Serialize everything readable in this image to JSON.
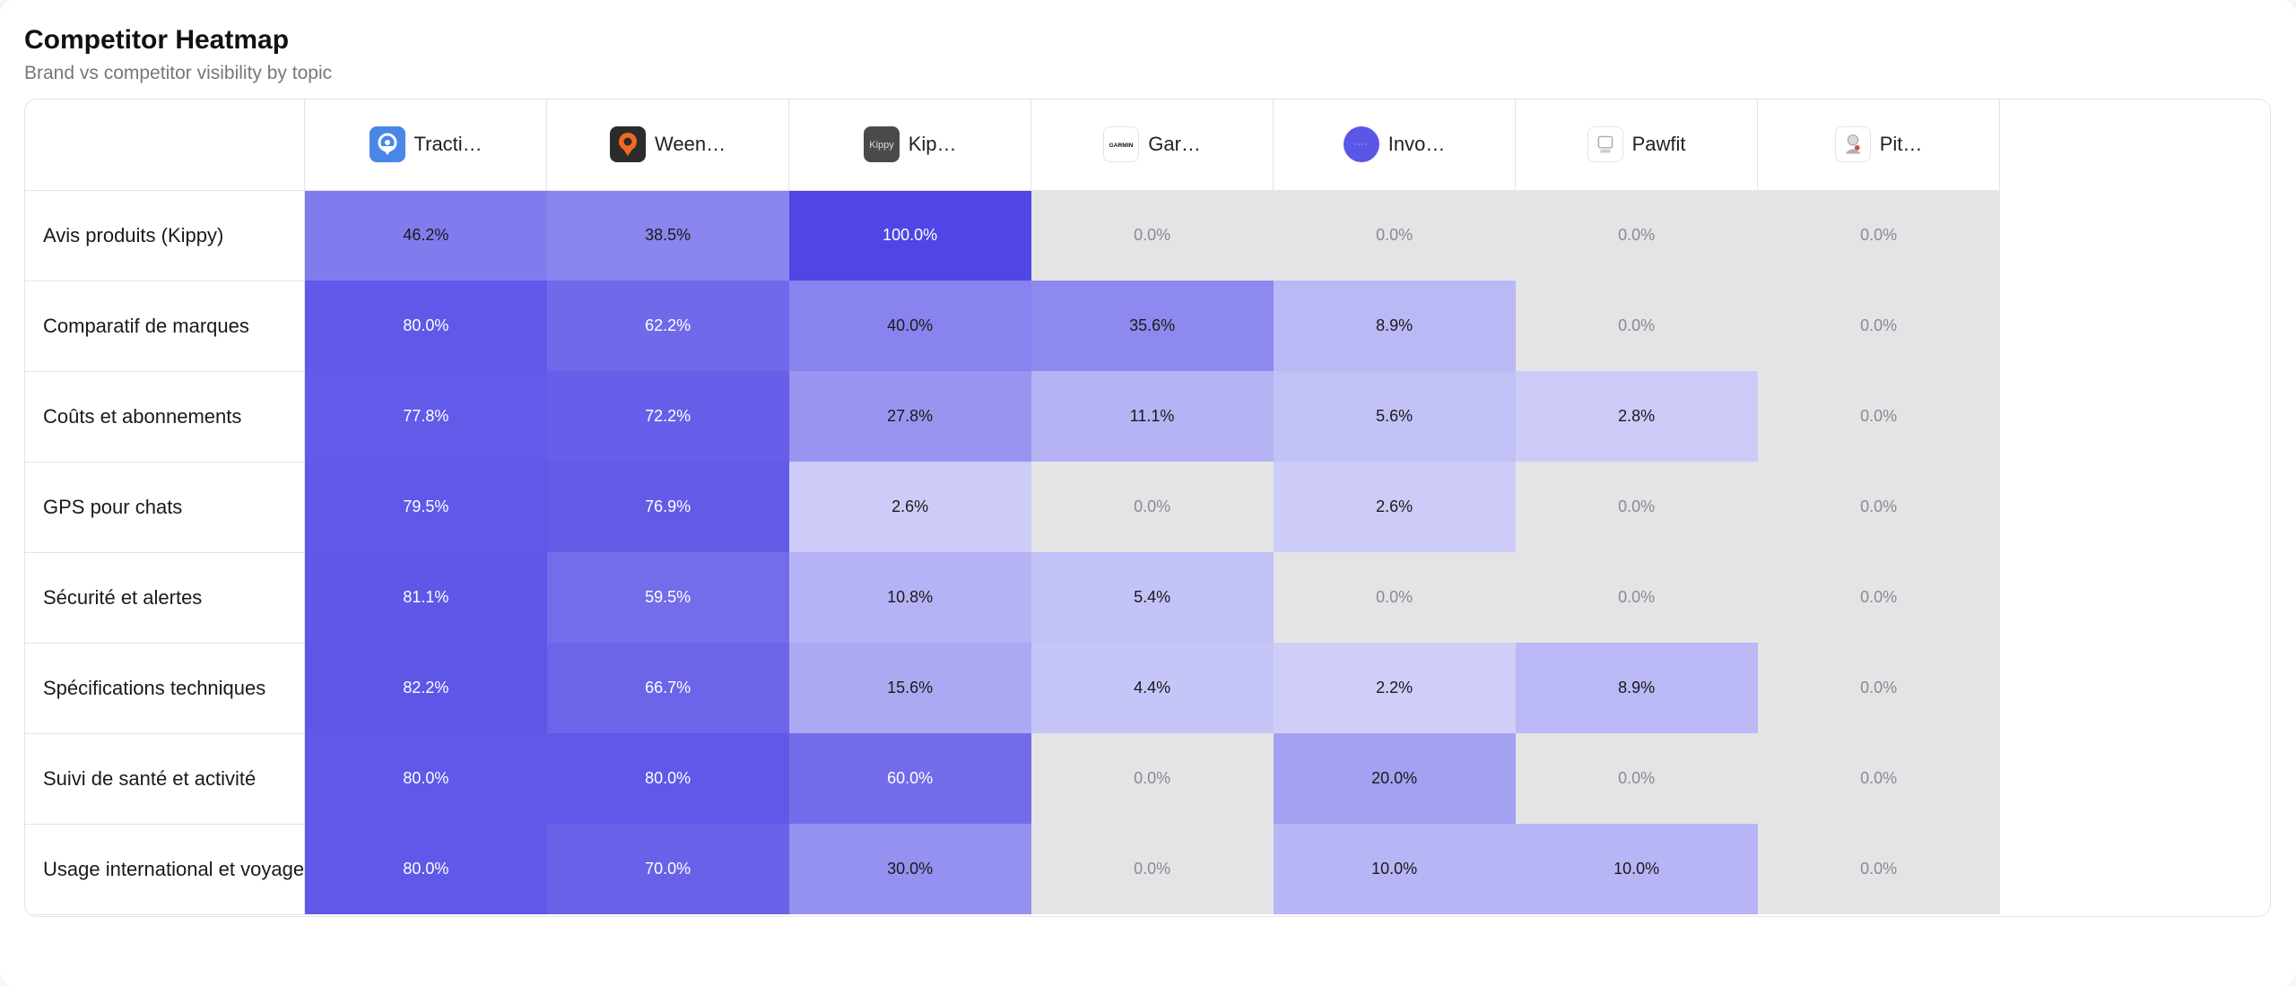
{
  "header": {
    "title": "Competitor Heatmap",
    "subtitle": "Brand vs competitor visibility by topic"
  },
  "colors": {
    "accent": "#4f46e5",
    "zero": "#e4e4e7",
    "min_tint": "#e0e1fb"
  },
  "chart_data": {
    "type": "heatmap",
    "title": "Competitor Heatmap",
    "subtitle": "Brand vs competitor visibility by topic",
    "unit": "%",
    "columns": [
      {
        "label": "Tracti…",
        "icon": "tractive-logo-icon"
      },
      {
        "label": "Ween…",
        "icon": "weenect-logo-icon"
      },
      {
        "label": "Kip…",
        "icon": "kippy-logo-icon"
      },
      {
        "label": "Gar…",
        "icon": "garmin-logo-icon"
      },
      {
        "label": "Invo…",
        "icon": "invoxia-logo-icon"
      },
      {
        "label": "Pawfit",
        "icon": "pawfit-logo-icon"
      },
      {
        "label": "Pit…",
        "icon": "pitpat-logo-icon"
      }
    ],
    "logo_text": {
      "kippy": "Kippy",
      "garmin": "GARMIN"
    },
    "rows": [
      "Avis produits (Kippy)",
      "Comparatif de marques",
      "Coûts et abonnements",
      "GPS pour chats",
      "Sécurité et alertes",
      "Spécifications techniques",
      "Suivi de santé et activité",
      "Usage international et voyage"
    ],
    "values": [
      [
        46.2,
        38.5,
        100.0,
        0.0,
        0.0,
        0.0,
        0.0
      ],
      [
        80.0,
        62.2,
        40.0,
        35.6,
        8.9,
        0.0,
        0.0
      ],
      [
        77.8,
        72.2,
        27.8,
        11.1,
        5.6,
        2.8,
        0.0
      ],
      [
        79.5,
        76.9,
        2.6,
        0.0,
        2.6,
        0.0,
        0.0
      ],
      [
        81.1,
        59.5,
        10.8,
        5.4,
        0.0,
        0.0,
        0.0
      ],
      [
        82.2,
        66.7,
        15.6,
        4.4,
        2.2,
        8.9,
        0.0
      ],
      [
        80.0,
        80.0,
        60.0,
        0.0,
        20.0,
        0.0,
        0.0
      ],
      [
        80.0,
        70.0,
        30.0,
        0.0,
        10.0,
        10.0,
        0.0
      ]
    ],
    "value_format": "one decimal with % suffix"
  }
}
